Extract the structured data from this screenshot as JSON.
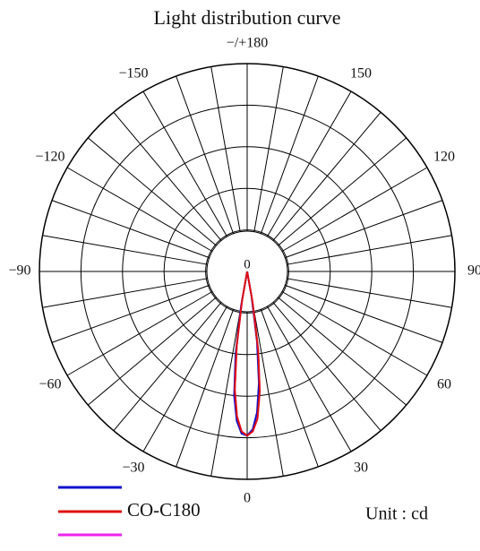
{
  "chart_data": {
    "type": "polar",
    "title": "Light distribution curve",
    "unit_label": "Unit : cd",
    "theta": [
      -12,
      -10,
      -8,
      -6,
      -4,
      -2,
      0,
      2,
      4,
      6,
      8,
      10,
      12
    ],
    "rlim": [
      0,
      100
    ],
    "rticks": [
      20,
      40,
      60,
      80,
      100
    ],
    "thetaticks": [
      {
        "value": 180,
        "label": "−/+180"
      },
      150,
      120,
      90,
      60,
      30,
      0,
      {
        "value": -30,
        "label": "−30"
      },
      {
        "value": -60,
        "label": "−60"
      },
      {
        "value": -90,
        "label": "−90"
      },
      {
        "value": -120,
        "label": "−120"
      },
      {
        "value": -150,
        "label": "−150"
      }
    ],
    "series": [
      {
        "color": "#ee22ee",
        "values": [
          0,
          14,
          36,
          57,
          70,
          77,
          79,
          77,
          71,
          58,
          38,
          15,
          0
        ]
      },
      {
        "color": "#1010cc",
        "values": [
          0,
          17,
          40,
          60,
          72,
          78,
          79,
          76,
          68,
          54,
          34,
          12,
          0
        ]
      },
      {
        "name": "CO-C180",
        "color": "#e01010",
        "values": [
          0,
          14,
          36,
          57,
          70,
          77,
          79,
          77,
          71,
          58,
          38,
          15,
          0
        ]
      }
    ]
  }
}
